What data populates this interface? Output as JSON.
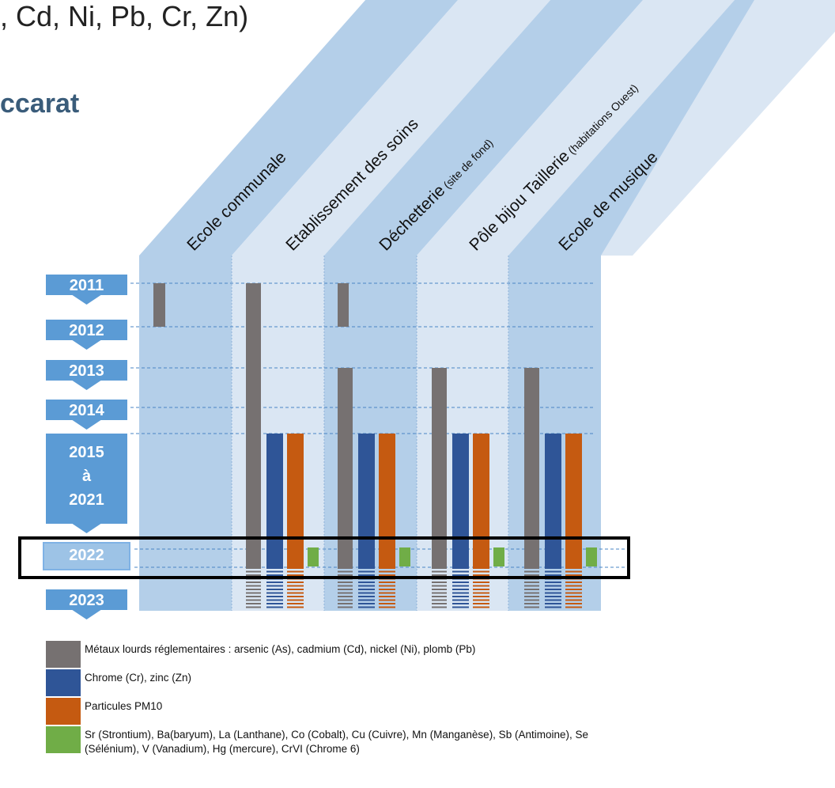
{
  "header": {
    "line1": ", Cd, Ni, Pb, Cr, Zn)",
    "line2": "ccarat"
  },
  "columns": [
    {
      "label": "Ecole communale",
      "sub": ""
    },
    {
      "label": "Etablissement des soins",
      "sub": ""
    },
    {
      "label": "Déchetterie",
      "sub": "(site de fond)"
    },
    {
      "label": "Pôle bijou Taillerie",
      "sub": "(habitations Ouest)"
    },
    {
      "label": "Ecole de musique",
      "sub": ""
    }
  ],
  "years": [
    {
      "label": "2011"
    },
    {
      "label": "2012"
    },
    {
      "label": "2013"
    },
    {
      "label": "2014"
    },
    {
      "label": "2015 à 2021",
      "lines": [
        "2015",
        "à",
        "2021"
      ]
    },
    {
      "label": "2022"
    },
    {
      "label": "2023"
    }
  ],
  "legend": [
    {
      "name": "metaux",
      "color": "#767171",
      "text": "Métaux lourds réglementaires : arsenic (As), cadmium (Cd), nickel (Ni), plomb (Pb)"
    },
    {
      "name": "chrome-zinc",
      "color": "#2f5597",
      "text": "Chrome (Cr), zinc (Zn)"
    },
    {
      "name": "pm10",
      "color": "#c55a11",
      "text": "Particules PM10"
    },
    {
      "name": "autres",
      "color": "#70ad47",
      "text": "Sr (Strontium), Ba(baryum), La (Lanthane),   Co (Cobalt), Cu (Cuivre), Mn (Manganèse), Sb (Antimoine), Se (Sélénium), V (Vanadium), Hg (mercure), CrVI (Chrome 6)"
    }
  ],
  "colors": {
    "band_dark": "#b4cfe9",
    "band_light": "#dae6f3",
    "year_box": "#5b9bd5",
    "year_box_highlight": "#9dc3e6",
    "metaux": "#767171",
    "chrome_zinc": "#2f5597",
    "pm10": "#c55a11",
    "autres": "#70ad47"
  }
}
